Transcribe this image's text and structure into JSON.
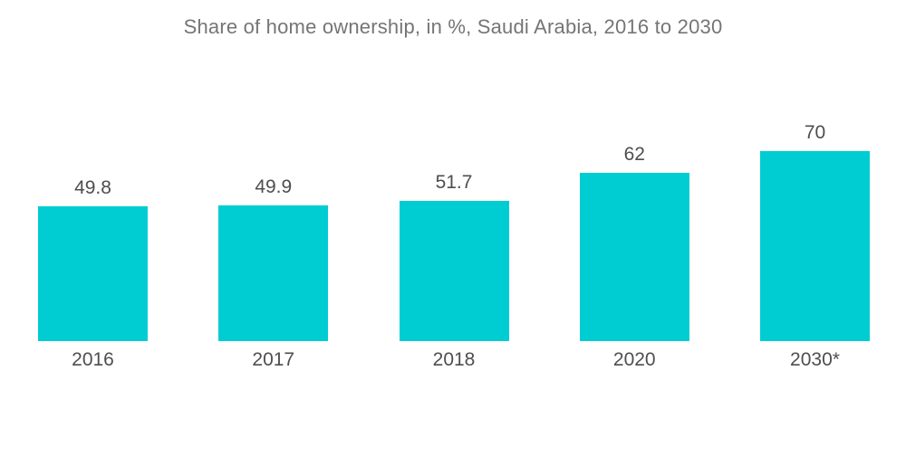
{
  "chart_data": {
    "type": "bar",
    "title": "Share of home ownership, in %, Saudi Arabia, 2016 to 2030",
    "categories": [
      "2016",
      "2017",
      "2018",
      "2020",
      "2030*"
    ],
    "values": [
      49.8,
      49.9,
      51.7,
      62,
      70
    ],
    "value_labels": [
      "49.8",
      "49.9",
      "51.7",
      "62",
      "70"
    ],
    "xlabel": "",
    "ylabel": "",
    "ylim": [
      0,
      75
    ],
    "grid": false,
    "legend": false,
    "axes_visible": false,
    "data_labels_position": "above-bar",
    "colors": {
      "bar": "#00CDD2",
      "title": "#757575",
      "labels": "#4E4E4E",
      "background": "#FFFFFF"
    }
  }
}
